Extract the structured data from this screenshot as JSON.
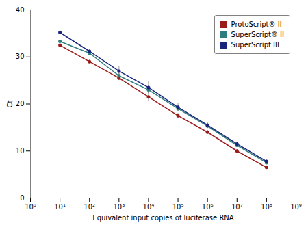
{
  "chart_data": {
    "type": "line",
    "xlabel": "Equivalent input copies of luciferase RNA",
    "ylabel": "Ct",
    "x": [
      10,
      100,
      1000,
      10000,
      100000,
      1000000,
      10000000,
      100000000
    ],
    "series": [
      {
        "name": "ProtoScript® II",
        "color": "#9B1B1B",
        "values": [
          32.5,
          29.0,
          25.5,
          21.5,
          17.5,
          14.0,
          10.0,
          6.5
        ],
        "yerr": [
          0.3,
          0.4,
          0.5,
          1.0,
          0.5,
          0.4,
          0.3,
          0.3
        ]
      },
      {
        "name": "SuperScript® II",
        "color": "#2E7D7D",
        "values": [
          33.3,
          30.8,
          26.0,
          23.0,
          19.0,
          15.3,
          11.2,
          7.5
        ],
        "yerr": [
          0.3,
          0.4,
          0.6,
          0.8,
          0.6,
          0.5,
          0.3,
          0.3
        ]
      },
      {
        "name": "SuperScript III",
        "color": "#1A237E",
        "values": [
          35.2,
          31.2,
          27.0,
          23.5,
          19.3,
          15.5,
          11.5,
          7.8
        ],
        "yerr": [
          0.5,
          0.5,
          1.0,
          1.2,
          0.8,
          0.6,
          0.4,
          0.3
        ]
      }
    ],
    "log": "x",
    "xlim": [
      1,
      1000000000
    ],
    "xticks": [
      {
        "value": 1,
        "label": "10⁰"
      },
      {
        "value": 10,
        "label": "10¹"
      },
      {
        "value": 100,
        "label": "10²"
      },
      {
        "value": 1000,
        "label": "10³"
      },
      {
        "value": 10000,
        "label": "10⁴"
      },
      {
        "value": 100000,
        "label": "10⁵"
      },
      {
        "value": 1000000,
        "label": "10⁶"
      },
      {
        "value": 10000000,
        "label": "10⁷"
      },
      {
        "value": 100000000,
        "label": "10⁸"
      },
      {
        "value": 1000000000,
        "label": "10⁹"
      }
    ],
    "ylim": [
      0,
      40
    ],
    "yticks": [
      0,
      10,
      20,
      30,
      40
    ],
    "legend": "upper right",
    "marker": "o",
    "grid": false
  }
}
